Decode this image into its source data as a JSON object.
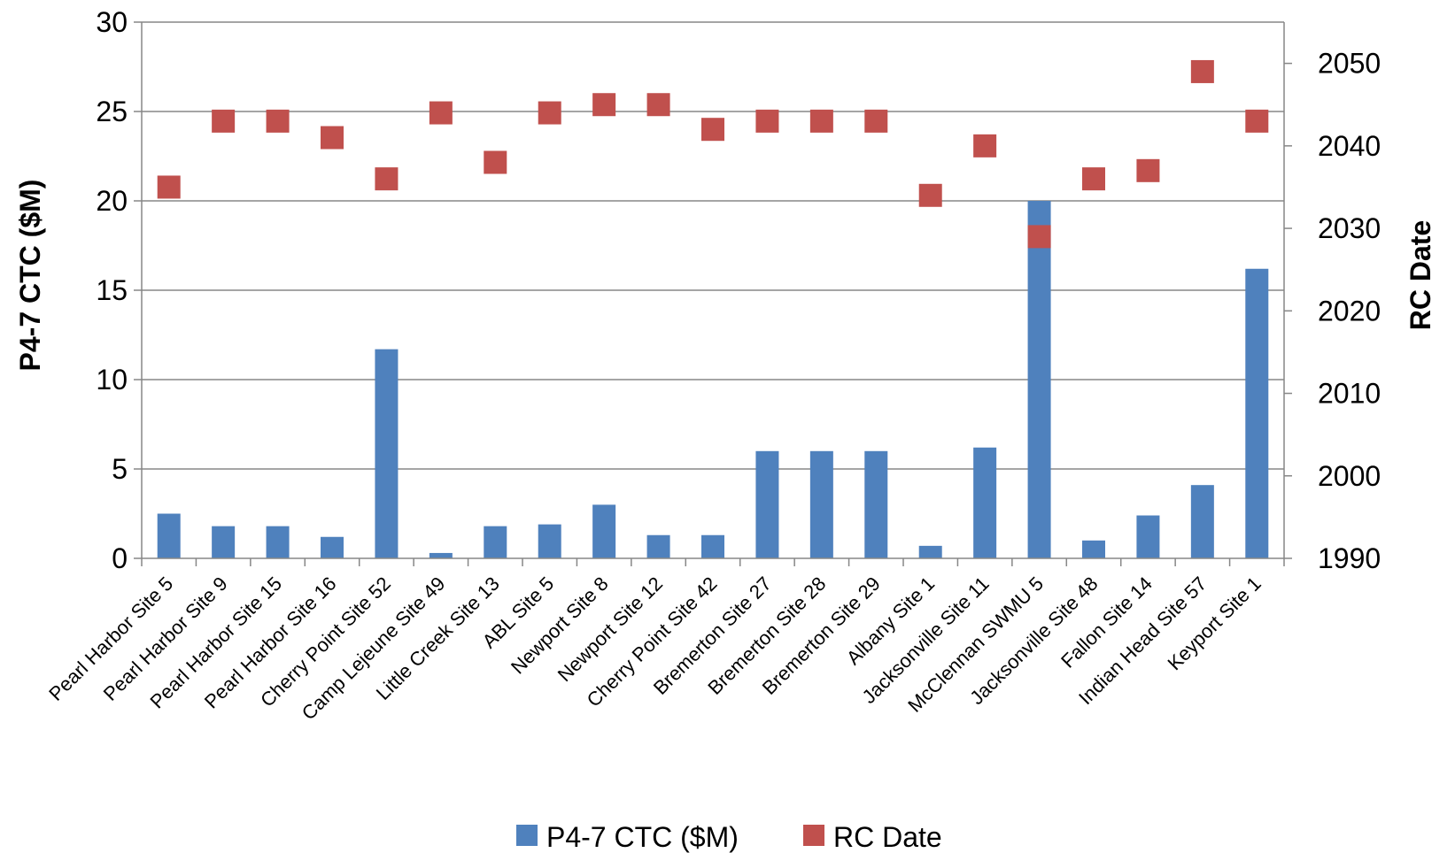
{
  "chart_data": {
    "type": "bar",
    "categories": [
      "Pearl Harbor Site 5",
      "Pearl Harbor Site 9",
      "Pearl Harbor Site 15",
      "Pearl Harbor Site 16",
      "Cherry Point Site 52",
      "Camp Lejeune Site 49",
      "Little Creek Site 13",
      "ABL Site 5",
      "Newport Site 8",
      "Newport Site 12",
      "Cherry Point Site 42",
      "Bremerton Site 27",
      "Bremerton Site 28",
      "Bremerton Site 29",
      "Albany Site 1",
      "Jacksonville Site 11",
      "McClennan SWMU 5",
      "Jacksonville Site 48",
      "Fallon Site 14",
      "Indian Head Site 57",
      "Keyport Site 1"
    ],
    "series": [
      {
        "name": "P4-7 CTC ($M)",
        "type": "bar",
        "axis": "left",
        "color": "#4F81BD",
        "values": [
          2.5,
          1.8,
          1.8,
          1.2,
          11.7,
          0.3,
          1.8,
          1.9,
          3.0,
          1.3,
          1.3,
          6.0,
          6.0,
          6.0,
          0.7,
          6.2,
          20.0,
          1.0,
          2.4,
          4.1,
          16.2
        ]
      },
      {
        "name": "RC Date",
        "type": "scatter",
        "axis": "right",
        "color": "#C0504D",
        "values": [
          2035,
          2043,
          2043,
          2041,
          2036,
          2044,
          2038,
          2044,
          2045,
          2045,
          2042,
          2043,
          2043,
          2043,
          2034,
          2040,
          2029,
          2036,
          2037,
          2049,
          2043
        ]
      }
    ],
    "ylabel": "P4-7 CTC ($M)",
    "y2label": "RC Date",
    "ylim": [
      0,
      30
    ],
    "y2lim": [
      1990,
      2055
    ],
    "yticks": [
      0,
      5,
      10,
      15,
      20,
      25,
      30
    ],
    "y2ticks": [
      1990,
      2000,
      2010,
      2020,
      2030,
      2040,
      2050
    ],
    "grid": true,
    "legend": "bottom"
  }
}
